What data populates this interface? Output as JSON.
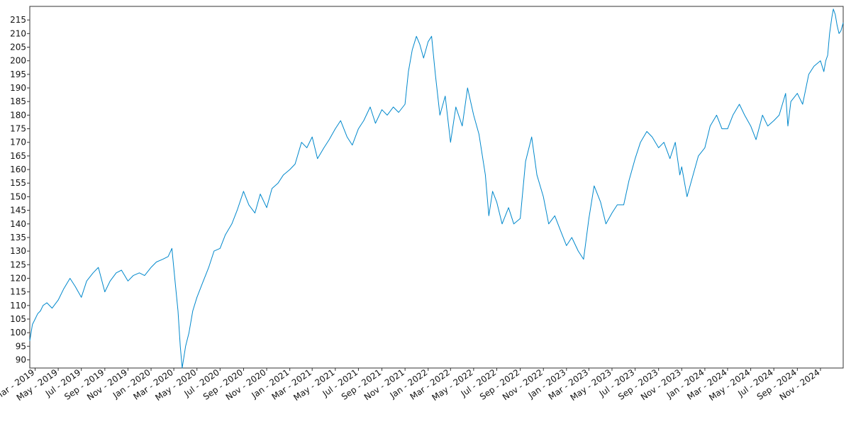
{
  "chart_data": {
    "type": "line",
    "title": "",
    "xlabel": "",
    "ylabel": "",
    "grid": false,
    "legend": "none",
    "line_color": "#0088cc",
    "xlim": [
      "2019-02-15",
      "2024-12-31"
    ],
    "ylim": [
      87,
      220
    ],
    "y_ticks": [
      90,
      95,
      100,
      105,
      110,
      115,
      120,
      125,
      130,
      135,
      140,
      145,
      150,
      155,
      160,
      165,
      170,
      175,
      180,
      185,
      190,
      195,
      200,
      205,
      210,
      215
    ],
    "x_ticks": [
      {
        "date": "2019-03-01",
        "label": "Mar - 2019"
      },
      {
        "date": "2019-05-01",
        "label": "May - 2019"
      },
      {
        "date": "2019-07-01",
        "label": "Jul - 2019"
      },
      {
        "date": "2019-09-01",
        "label": "Sep - 2019"
      },
      {
        "date": "2019-11-01",
        "label": "Nov - 2019"
      },
      {
        "date": "2020-01-01",
        "label": "Jan - 2020"
      },
      {
        "date": "2020-03-01",
        "label": "Mar - 2020"
      },
      {
        "date": "2020-05-01",
        "label": "May - 2020"
      },
      {
        "date": "2020-07-01",
        "label": "Jul - 2020"
      },
      {
        "date": "2020-09-01",
        "label": "Sep - 2020"
      },
      {
        "date": "2020-11-01",
        "label": "Nov - 2020"
      },
      {
        "date": "2021-01-01",
        "label": "Jan - 2021"
      },
      {
        "date": "2021-03-01",
        "label": "Mar - 2021"
      },
      {
        "date": "2021-05-01",
        "label": "May - 2021"
      },
      {
        "date": "2021-07-01",
        "label": "Jul - 2021"
      },
      {
        "date": "2021-09-01",
        "label": "Sep - 2021"
      },
      {
        "date": "2021-11-01",
        "label": "Nov - 2021"
      },
      {
        "date": "2022-01-01",
        "label": "Jan - 2022"
      },
      {
        "date": "2022-03-01",
        "label": "Mar - 2022"
      },
      {
        "date": "2022-05-01",
        "label": "May - 2022"
      },
      {
        "date": "2022-07-01",
        "label": "Jul - 2022"
      },
      {
        "date": "2022-09-01",
        "label": "Sep - 2022"
      },
      {
        "date": "2022-11-01",
        "label": "Nov - 2022"
      },
      {
        "date": "2023-01-01",
        "label": "Jan - 2023"
      },
      {
        "date": "2023-03-01",
        "label": "Mar - 2023"
      },
      {
        "date": "2023-05-01",
        "label": "May - 2023"
      },
      {
        "date": "2023-07-01",
        "label": "Jul - 2023"
      },
      {
        "date": "2023-09-01",
        "label": "Sep - 2023"
      },
      {
        "date": "2023-11-01",
        "label": "Nov - 2023"
      },
      {
        "date": "2024-01-01",
        "label": "Jan - 2024"
      },
      {
        "date": "2024-03-01",
        "label": "Mar - 2024"
      },
      {
        "date": "2024-05-01",
        "label": "May - 2024"
      },
      {
        "date": "2024-07-01",
        "label": "Jul - 2024"
      },
      {
        "date": "2024-09-01",
        "label": "Sep - 2024"
      },
      {
        "date": "2024-11-01",
        "label": "Nov - 2024"
      }
    ],
    "series": [
      {
        "x": [
          "2019-02-15",
          "2019-02-22",
          "2019-03-01",
          "2019-03-08",
          "2019-03-15",
          "2019-03-22",
          "2019-04-01",
          "2019-04-15",
          "2019-05-01",
          "2019-05-15",
          "2019-06-01",
          "2019-06-15",
          "2019-07-01",
          "2019-07-15",
          "2019-08-01",
          "2019-08-15",
          "2019-09-01",
          "2019-09-15",
          "2019-10-01",
          "2019-10-15",
          "2019-11-01",
          "2019-11-15",
          "2019-12-01",
          "2019-12-15",
          "2020-01-01",
          "2020-01-15",
          "2020-02-01",
          "2020-02-15",
          "2020-02-25",
          "2020-03-05",
          "2020-03-12",
          "2020-03-18",
          "2020-03-23",
          "2020-04-01",
          "2020-04-10",
          "2020-04-20",
          "2020-05-01",
          "2020-05-15",
          "2020-06-01",
          "2020-06-15",
          "2020-07-01",
          "2020-07-15",
          "2020-08-01",
          "2020-08-15",
          "2020-09-01",
          "2020-09-15",
          "2020-10-01",
          "2020-10-15",
          "2020-11-01",
          "2020-11-15",
          "2020-12-01",
          "2020-12-15",
          "2021-01-01",
          "2021-01-15",
          "2021-02-01",
          "2021-02-15",
          "2021-03-01",
          "2021-03-15",
          "2021-04-01",
          "2021-04-15",
          "2021-05-01",
          "2021-05-15",
          "2021-06-01",
          "2021-06-15",
          "2021-07-01",
          "2021-07-15",
          "2021-08-01",
          "2021-08-15",
          "2021-09-01",
          "2021-09-15",
          "2021-10-01",
          "2021-10-15",
          "2021-11-01",
          "2021-11-10",
          "2021-11-20",
          "2021-12-01",
          "2021-12-10",
          "2021-12-20",
          "2022-01-01",
          "2022-01-10",
          "2022-01-20",
          "2022-02-01",
          "2022-02-15",
          "2022-03-01",
          "2022-03-15",
          "2022-04-01",
          "2022-04-15",
          "2022-05-01",
          "2022-05-15",
          "2022-06-01",
          "2022-06-10",
          "2022-06-20",
          "2022-07-01",
          "2022-07-15",
          "2022-08-01",
          "2022-08-15",
          "2022-09-01",
          "2022-09-15",
          "2022-10-01",
          "2022-10-15",
          "2022-11-01",
          "2022-11-15",
          "2022-12-01",
          "2022-12-15",
          "2023-01-01",
          "2023-01-15",
          "2023-02-01",
          "2023-02-15",
          "2023-03-01",
          "2023-03-15",
          "2023-04-01",
          "2023-04-15",
          "2023-05-01",
          "2023-05-15",
          "2023-06-01",
          "2023-06-15",
          "2023-07-01",
          "2023-07-15",
          "2023-08-01",
          "2023-08-15",
          "2023-09-01",
          "2023-09-15",
          "2023-10-01",
          "2023-10-15",
          "2023-10-27",
          "2023-11-01",
          "2023-11-15",
          "2023-12-01",
          "2023-12-15",
          "2024-01-01",
          "2024-01-15",
          "2024-02-01",
          "2024-02-15",
          "2024-03-01",
          "2024-03-15",
          "2024-04-01",
          "2024-04-15",
          "2024-05-01",
          "2024-05-15",
          "2024-06-01",
          "2024-06-15",
          "2024-07-01",
          "2024-07-15",
          "2024-08-01",
          "2024-08-07",
          "2024-08-15",
          "2024-09-01",
          "2024-09-15",
          "2024-10-01",
          "2024-10-15",
          "2024-11-01",
          "2024-11-10",
          "2024-11-15",
          "2024-11-20",
          "2024-11-25",
          "2024-12-01",
          "2024-12-05",
          "2024-12-10",
          "2024-12-15",
          "2024-12-20",
          "2024-12-25",
          "2024-12-31"
        ],
        "y": [
          97,
          103,
          105,
          107,
          108,
          110,
          111,
          109,
          112,
          116,
          120,
          117,
          113,
          119,
          122,
          124,
          115,
          119,
          122,
          123,
          119,
          121,
          122,
          121,
          124,
          126,
          127,
          128,
          131,
          118,
          108,
          95,
          87,
          95,
          100,
          108,
          113,
          118,
          124,
          130,
          131,
          136,
          140,
          145,
          152,
          147,
          144,
          151,
          146,
          153,
          155,
          158,
          160,
          162,
          170,
          168,
          172,
          164,
          168,
          171,
          175,
          178,
          172,
          169,
          175,
          178,
          183,
          177,
          182,
          180,
          183,
          181,
          184,
          196,
          204,
          209,
          206,
          201,
          207,
          209,
          195,
          180,
          187,
          170,
          183,
          176,
          190,
          180,
          173,
          158,
          143,
          152,
          148,
          140,
          146,
          140,
          142,
          163,
          172,
          158,
          150,
          140,
          143,
          138,
          132,
          135,
          130,
          127,
          142,
          154,
          148,
          140,
          144,
          147,
          147,
          156,
          164,
          170,
          174,
          172,
          168,
          170,
          164,
          170,
          158,
          161,
          150,
          158,
          165,
          168,
          176,
          180,
          175,
          175,
          180,
          184,
          180,
          176,
          171,
          180,
          176,
          178,
          180,
          188,
          176,
          185,
          188,
          184,
          195,
          198,
          200,
          196,
          200,
          202,
          210,
          216,
          219,
          217,
          213,
          210,
          211,
          214
        ]
      }
    ]
  }
}
